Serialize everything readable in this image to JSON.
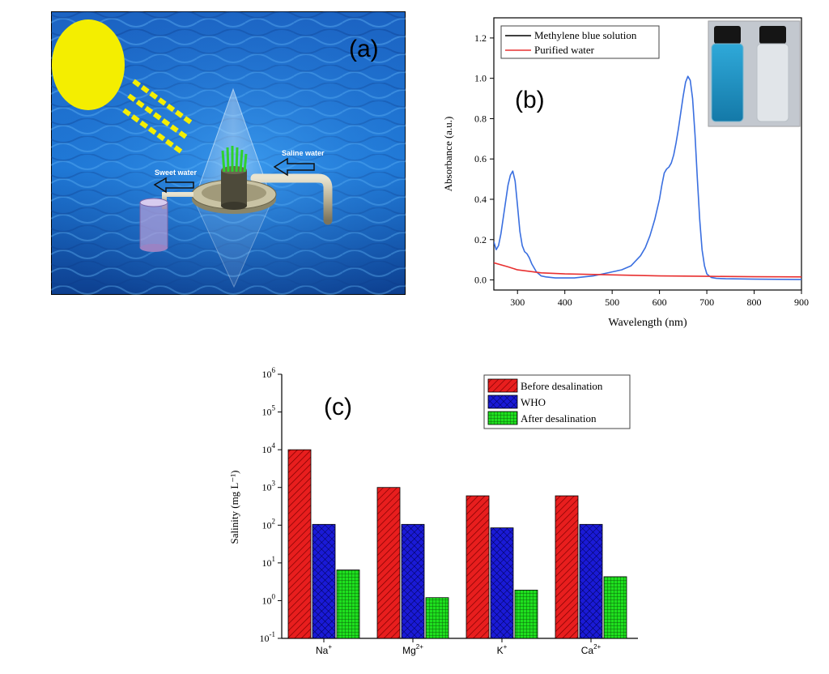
{
  "panel_a": {
    "label": "(a)",
    "sweet_water_label": "Sweet water",
    "saline_water_label": "Saline water",
    "colors": {
      "sea": "#1f6fc9",
      "sun": "#f4ee00"
    },
    "icons": [
      "sun-icon",
      "light-rays-icon",
      "cone-still-icon",
      "collection-cup-icon"
    ]
  },
  "chart_data": [
    {
      "type": "line",
      "panel_label": "(b)",
      "xlabel": "Wavelength (nm)",
      "ylabel": "Absorbance (a.u.)",
      "xlim": [
        250,
        900
      ],
      "ylim": [
        -0.05,
        1.3
      ],
      "x_ticks": [
        300,
        400,
        500,
        600,
        700,
        800,
        900
      ],
      "y_ticks": [
        0.0,
        0.2,
        0.4,
        0.6,
        0.8,
        1.0,
        1.2
      ],
      "grid": false,
      "legend_position": "top-left",
      "legend_line_color": "#000000",
      "inset": "photo of two vials: blue methylene blue solution and clear purified water",
      "series": [
        {
          "name": "Methylene blue solution",
          "color": "#3a6fe0",
          "x": [
            250,
            255,
            260,
            265,
            270,
            275,
            280,
            285,
            290,
            295,
            300,
            305,
            310,
            315,
            320,
            325,
            330,
            340,
            350,
            360,
            380,
            400,
            420,
            440,
            460,
            480,
            500,
            520,
            540,
            560,
            570,
            580,
            590,
            600,
            605,
            610,
            615,
            620,
            625,
            630,
            635,
            640,
            645,
            650,
            655,
            660,
            665,
            670,
            675,
            680,
            685,
            690,
            695,
            700,
            705,
            710,
            720,
            740,
            800,
            850,
            900
          ],
          "y": [
            0.19,
            0.15,
            0.17,
            0.23,
            0.31,
            0.39,
            0.47,
            0.52,
            0.54,
            0.49,
            0.37,
            0.24,
            0.17,
            0.14,
            0.13,
            0.11,
            0.08,
            0.04,
            0.02,
            0.015,
            0.01,
            0.01,
            0.01,
            0.015,
            0.02,
            0.03,
            0.04,
            0.05,
            0.07,
            0.12,
            0.16,
            0.22,
            0.3,
            0.4,
            0.47,
            0.53,
            0.55,
            0.56,
            0.58,
            0.62,
            0.68,
            0.75,
            0.83,
            0.91,
            0.98,
            1.01,
            0.99,
            0.9,
            0.72,
            0.5,
            0.3,
            0.15,
            0.07,
            0.03,
            0.02,
            0.012,
            0.008,
            0.006,
            0.004,
            0.003,
            0.002
          ]
        },
        {
          "name": "Purified water",
          "color": "#e83030",
          "x": [
            250,
            280,
            300,
            350,
            400,
            500,
            600,
            700,
            800,
            900
          ],
          "y": [
            0.085,
            0.065,
            0.05,
            0.035,
            0.03,
            0.025,
            0.02,
            0.018,
            0.016,
            0.015
          ]
        }
      ]
    },
    {
      "type": "bar",
      "panel_label": "(c)",
      "xlabel": "",
      "ylabel": "Salinity (mg L⁻¹)",
      "y_scale": "log",
      "ylim": [
        0.1,
        1000000
      ],
      "y_ticks": [
        {
          "base": "10",
          "exp": "-1"
        },
        {
          "base": "10",
          "exp": "0"
        },
        {
          "base": "10",
          "exp": "1"
        },
        {
          "base": "10",
          "exp": "2"
        },
        {
          "base": "10",
          "exp": "3"
        },
        {
          "base": "10",
          "exp": "4"
        },
        {
          "base": "10",
          "exp": "5"
        },
        {
          "base": "10",
          "exp": "6"
        }
      ],
      "categories": [
        {
          "base": "Na",
          "sup": "+"
        },
        {
          "base": "Mg",
          "sup": "2+"
        },
        {
          "base": "K",
          "sup": "+"
        },
        {
          "base": "Ca",
          "sup": "2+"
        }
      ],
      "legend_position": "top-right",
      "grid": false,
      "series": [
        {
          "name": "Before desalination",
          "color": "#e81e1e",
          "pattern": "diagonal-hatch",
          "values": [
            10000,
            1000,
            600,
            600
          ]
        },
        {
          "name": "WHO",
          "color": "#1a1ad6",
          "pattern": "cross-hatch",
          "values": [
            105,
            105,
            85,
            105
          ]
        },
        {
          "name": "After desalination",
          "color": "#1ee01e",
          "pattern": "grid",
          "values": [
            6.5,
            1.2,
            1.9,
            4.3
          ]
        }
      ]
    }
  ]
}
